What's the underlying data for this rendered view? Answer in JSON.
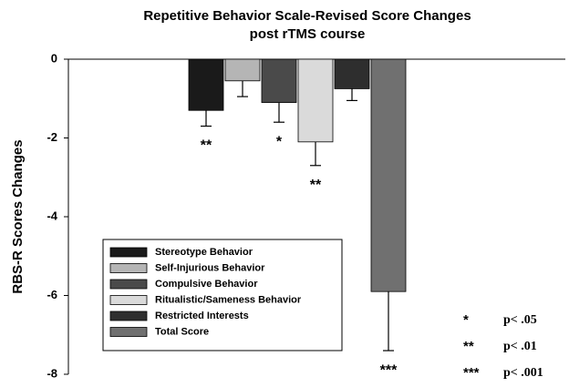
{
  "chart_data": {
    "type": "bar",
    "title": [
      "Repetitive Behavior Scale-Revised Score Changes",
      "post rTMS course"
    ],
    "ylabel": "RBS-R Scores Changes",
    "categories": [
      "Stereotype Behavior",
      "Self-Injurious Behavior",
      "Compulsive Behavior",
      "Ritualistic/Sameness Behavior",
      "Restricted Interests",
      "Total Score"
    ],
    "colors": [
      "#1a1a1a",
      "#b5b5b5",
      "#4a4a4a",
      "#dadada",
      "#2e2e2e",
      "#707070"
    ],
    "values": [
      -1.3,
      -0.55,
      -1.1,
      -2.1,
      -0.75,
      -5.9
    ],
    "errors": [
      0.4,
      0.4,
      0.5,
      0.6,
      0.3,
      1.5
    ],
    "significance": [
      "**",
      null,
      "*",
      "**",
      null,
      "***"
    ],
    "ylim": [
      -8,
      0
    ],
    "yticks": [
      0,
      -2,
      -4,
      -6,
      -8
    ],
    "notes": [
      {
        "symbol": "*",
        "label": "p< .05"
      },
      {
        "symbol": "**",
        "label": "p< .01"
      },
      {
        "symbol": "***",
        "label": "p< .001"
      }
    ]
  }
}
